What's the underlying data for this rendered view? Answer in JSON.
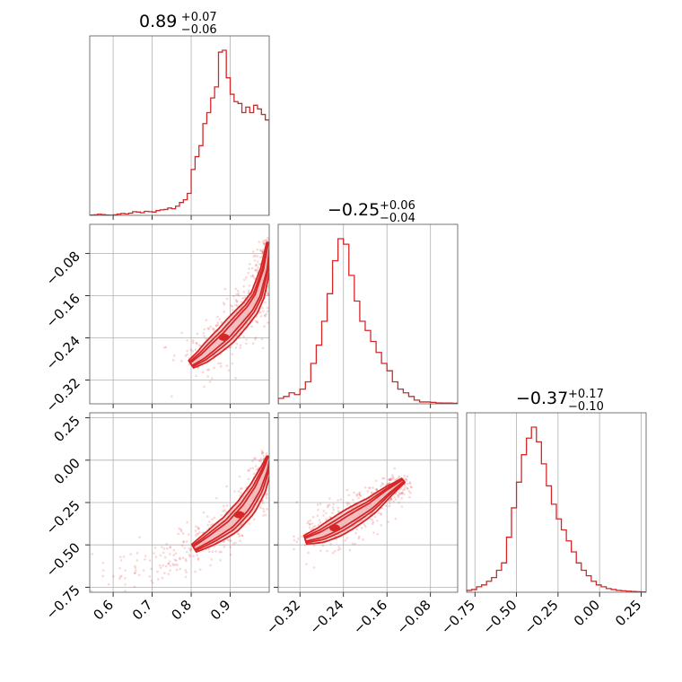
{
  "colors": {
    "accent": "#d62728",
    "fill": "#f2b9bb",
    "grid": "#b0b0b0"
  },
  "chart_data": {
    "type": "corner",
    "panels": [
      {
        "id": "hist-p1",
        "kind": "histogram",
        "title": {
          "main": "0.89",
          "plus": "+0.07",
          "minus": "−0.06"
        },
        "xlim": [
          0.54,
          1.0
        ],
        "xgrid": [
          0.6,
          0.7,
          0.8,
          0.9
        ],
        "bins": [
          [
            0.54,
            0.002
          ],
          [
            0.55,
            0.003
          ],
          [
            0.56,
            0.006
          ],
          [
            0.57,
            0.004
          ],
          [
            0.58,
            0.002
          ],
          [
            0.59,
            0.001
          ],
          [
            0.6,
            0.003
          ],
          [
            0.61,
            0.007
          ],
          [
            0.62,
            0.01
          ],
          [
            0.63,
            0.008
          ],
          [
            0.64,
            0.012
          ],
          [
            0.65,
            0.02
          ],
          [
            0.66,
            0.018
          ],
          [
            0.67,
            0.014
          ],
          [
            0.68,
            0.022
          ],
          [
            0.69,
            0.02
          ],
          [
            0.7,
            0.018
          ],
          [
            0.71,
            0.026
          ],
          [
            0.72,
            0.03
          ],
          [
            0.73,
            0.032
          ],
          [
            0.74,
            0.04
          ],
          [
            0.75,
            0.036
          ],
          [
            0.76,
            0.05
          ],
          [
            0.77,
            0.07
          ],
          [
            0.78,
            0.085
          ],
          [
            0.79,
            0.12
          ],
          [
            0.8,
            0.25
          ],
          [
            0.81,
            0.32
          ],
          [
            0.82,
            0.38
          ],
          [
            0.83,
            0.5
          ],
          [
            0.84,
            0.56
          ],
          [
            0.85,
            0.64
          ],
          [
            0.86,
            0.7
          ],
          [
            0.87,
            0.89
          ],
          [
            0.88,
            0.9
          ],
          [
            0.89,
            0.75
          ],
          [
            0.9,
            0.66
          ],
          [
            0.91,
            0.62
          ],
          [
            0.92,
            0.61
          ],
          [
            0.93,
            0.56
          ],
          [
            0.94,
            0.59
          ],
          [
            0.95,
            0.56
          ],
          [
            0.96,
            0.6
          ],
          [
            0.97,
            0.58
          ],
          [
            0.98,
            0.55
          ],
          [
            0.99,
            0.52
          ]
        ]
      },
      {
        "id": "scatter-p1-p2",
        "kind": "density",
        "xlim": [
          0.54,
          1.0
        ],
        "ylim": [
          -0.365,
          -0.025
        ],
        "xgrid": [
          0.6,
          0.7,
          0.8,
          0.9
        ],
        "ygrid": [
          -0.32,
          -0.24,
          -0.16,
          -0.08
        ],
        "yticklabels": [
          "−0.32",
          "−0.24",
          "−0.16",
          "−0.08"
        ],
        "ridge": [
          [
            0.8,
            -0.29
          ],
          [
            0.83,
            -0.275
          ],
          [
            0.86,
            -0.255
          ],
          [
            0.89,
            -0.235
          ],
          [
            0.92,
            -0.21
          ],
          [
            0.95,
            -0.185
          ],
          [
            0.97,
            -0.16
          ],
          [
            0.99,
            -0.11
          ],
          [
            1.0,
            -0.06
          ]
        ]
      },
      {
        "id": "hist-p2",
        "kind": "histogram",
        "title": {
          "main": "−0.25",
          "plus": "+0.06",
          "minus": "−0.04"
        },
        "xlim": [
          -0.36,
          -0.03
        ],
        "xgrid": [
          -0.32,
          -0.24,
          -0.16,
          -0.08
        ],
        "bins": [
          [
            -0.36,
            0.03
          ],
          [
            -0.35,
            0.04
          ],
          [
            -0.34,
            0.06
          ],
          [
            -0.33,
            0.05
          ],
          [
            -0.32,
            0.08
          ],
          [
            -0.31,
            0.12
          ],
          [
            -0.3,
            0.22
          ],
          [
            -0.29,
            0.32
          ],
          [
            -0.28,
            0.45
          ],
          [
            -0.27,
            0.6
          ],
          [
            -0.26,
            0.78
          ],
          [
            -0.25,
            0.9
          ],
          [
            -0.24,
            0.87
          ],
          [
            -0.23,
            0.7
          ],
          [
            -0.22,
            0.56
          ],
          [
            -0.21,
            0.45
          ],
          [
            -0.2,
            0.4
          ],
          [
            -0.19,
            0.34
          ],
          [
            -0.18,
            0.28
          ],
          [
            -0.17,
            0.22
          ],
          [
            -0.16,
            0.18
          ],
          [
            -0.15,
            0.12
          ],
          [
            -0.14,
            0.08
          ],
          [
            -0.13,
            0.06
          ],
          [
            -0.12,
            0.04
          ],
          [
            -0.11,
            0.02
          ],
          [
            -0.1,
            0.01
          ],
          [
            -0.09,
            0.01
          ],
          [
            -0.08,
            0.008
          ],
          [
            -0.07,
            0.005
          ],
          [
            -0.06,
            0.004
          ],
          [
            -0.05,
            0.004
          ],
          [
            -0.04,
            0.003
          ]
        ]
      },
      {
        "id": "scatter-p1-p3",
        "kind": "density",
        "xlim": [
          0.54,
          1.0
        ],
        "ylim": [
          -0.78,
          0.28
        ],
        "xgrid": [
          0.6,
          0.7,
          0.8,
          0.9
        ],
        "ygrid": [
          -0.75,
          -0.5,
          -0.25,
          0.0,
          0.25
        ],
        "xticklabels": [
          "0.6",
          "0.7",
          "0.8",
          "0.9"
        ],
        "yticklabels": [
          "−0.75",
          "−0.50",
          "−0.25",
          "0.00",
          "0.25"
        ],
        "ridge": [
          [
            0.58,
            -0.7
          ],
          [
            0.66,
            -0.64
          ],
          [
            0.74,
            -0.59
          ],
          [
            0.8,
            -0.53
          ],
          [
            0.85,
            -0.46
          ],
          [
            0.9,
            -0.38
          ],
          [
            0.94,
            -0.28
          ],
          [
            0.97,
            -0.17
          ],
          [
            0.99,
            -0.06
          ],
          [
            1.0,
            0.02
          ]
        ]
      },
      {
        "id": "scatter-p2-p3",
        "kind": "density",
        "xlim": [
          -0.36,
          -0.03
        ],
        "ylim": [
          -0.78,
          0.28
        ],
        "xgrid": [
          -0.32,
          -0.24,
          -0.16,
          -0.08
        ],
        "ygrid": [
          -0.75,
          -0.5,
          -0.25,
          0.0,
          0.25
        ],
        "xticklabels": [
          "−0.32",
          "−0.24",
          "−0.16",
          "−0.08"
        ],
        "ridge": [
          [
            -0.31,
            -0.47
          ],
          [
            -0.28,
            -0.44
          ],
          [
            -0.25,
            -0.39
          ],
          [
            -0.22,
            -0.33
          ],
          [
            -0.19,
            -0.27
          ],
          [
            -0.16,
            -0.19
          ],
          [
            -0.13,
            -0.12
          ]
        ]
      },
      {
        "id": "hist-p3",
        "kind": "histogram",
        "title": {
          "main": "−0.37",
          "plus": "+0.17",
          "minus": "−0.10"
        },
        "xlim": [
          -0.8,
          0.28
        ],
        "xgrid": [
          -0.75,
          -0.5,
          -0.25,
          0.0,
          0.25
        ],
        "xticklabels": [
          "−0.75",
          "−0.50",
          "−0.25",
          "0.00",
          "0.25"
        ],
        "bins": [
          [
            -0.8,
            0.01
          ],
          [
            -0.77,
            0.015
          ],
          [
            -0.74,
            0.03
          ],
          [
            -0.71,
            0.04
          ],
          [
            -0.68,
            0.06
          ],
          [
            -0.65,
            0.08
          ],
          [
            -0.62,
            0.12
          ],
          [
            -0.59,
            0.16
          ],
          [
            -0.56,
            0.3
          ],
          [
            -0.53,
            0.46
          ],
          [
            -0.5,
            0.6
          ],
          [
            -0.47,
            0.75
          ],
          [
            -0.44,
            0.84
          ],
          [
            -0.41,
            0.9
          ],
          [
            -0.38,
            0.82
          ],
          [
            -0.35,
            0.7
          ],
          [
            -0.32,
            0.58
          ],
          [
            -0.29,
            0.48
          ],
          [
            -0.26,
            0.4
          ],
          [
            -0.23,
            0.34
          ],
          [
            -0.2,
            0.28
          ],
          [
            -0.17,
            0.22
          ],
          [
            -0.14,
            0.16
          ],
          [
            -0.11,
            0.12
          ],
          [
            -0.08,
            0.09
          ],
          [
            -0.05,
            0.06
          ],
          [
            -0.02,
            0.04
          ],
          [
            0.01,
            0.03
          ],
          [
            0.04,
            0.02
          ],
          [
            0.07,
            0.015
          ],
          [
            0.1,
            0.01
          ],
          [
            0.13,
            0.008
          ],
          [
            0.16,
            0.006
          ],
          [
            0.19,
            0.004
          ],
          [
            0.22,
            0.003
          ],
          [
            0.25,
            0.002
          ]
        ]
      }
    ]
  }
}
